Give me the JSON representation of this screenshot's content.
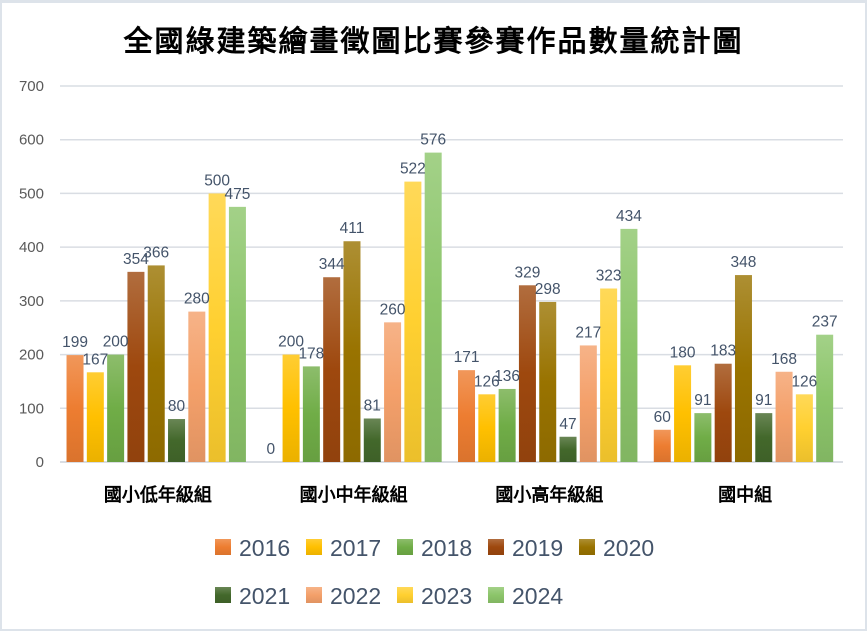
{
  "chart_data": {
    "type": "bar",
    "title": "全國綠建築繪畫徵圖比賽參賽作品數量統計圖",
    "xlabel": "",
    "ylabel": "",
    "ylim": [
      0,
      700
    ],
    "yticks": [
      0,
      100,
      200,
      300,
      400,
      500,
      600,
      700
    ],
    "grid": true,
    "legend_position": "bottom",
    "categories": [
      "國小低年級組",
      "國小中年級組",
      "國小高年級組",
      "國中組"
    ],
    "series": [
      {
        "name": "2016",
        "color": "#ed7d31",
        "values": [
          199,
          0,
          171,
          60
        ]
      },
      {
        "name": "2017",
        "color": "#ffc000",
        "values": [
          167,
          200,
          126,
          180
        ]
      },
      {
        "name": "2018",
        "color": "#70ad47",
        "values": [
          200,
          178,
          136,
          91
        ]
      },
      {
        "name": "2019",
        "color": "#9e480e",
        "values": [
          354,
          344,
          329,
          183
        ]
      },
      {
        "name": "2020",
        "color": "#997300",
        "values": [
          366,
          411,
          298,
          348
        ]
      },
      {
        "name": "2021",
        "color": "#43682b",
        "values": [
          80,
          81,
          47,
          91
        ]
      },
      {
        "name": "2022",
        "color": "#f4a06a",
        "values": [
          280,
          260,
          217,
          168
        ]
      },
      {
        "name": "2023",
        "color": "#ffd030",
        "values": [
          500,
          522,
          323,
          126
        ]
      },
      {
        "name": "2024",
        "color": "#8cc56a",
        "values": [
          475,
          576,
          434,
          237
        ]
      }
    ]
  }
}
